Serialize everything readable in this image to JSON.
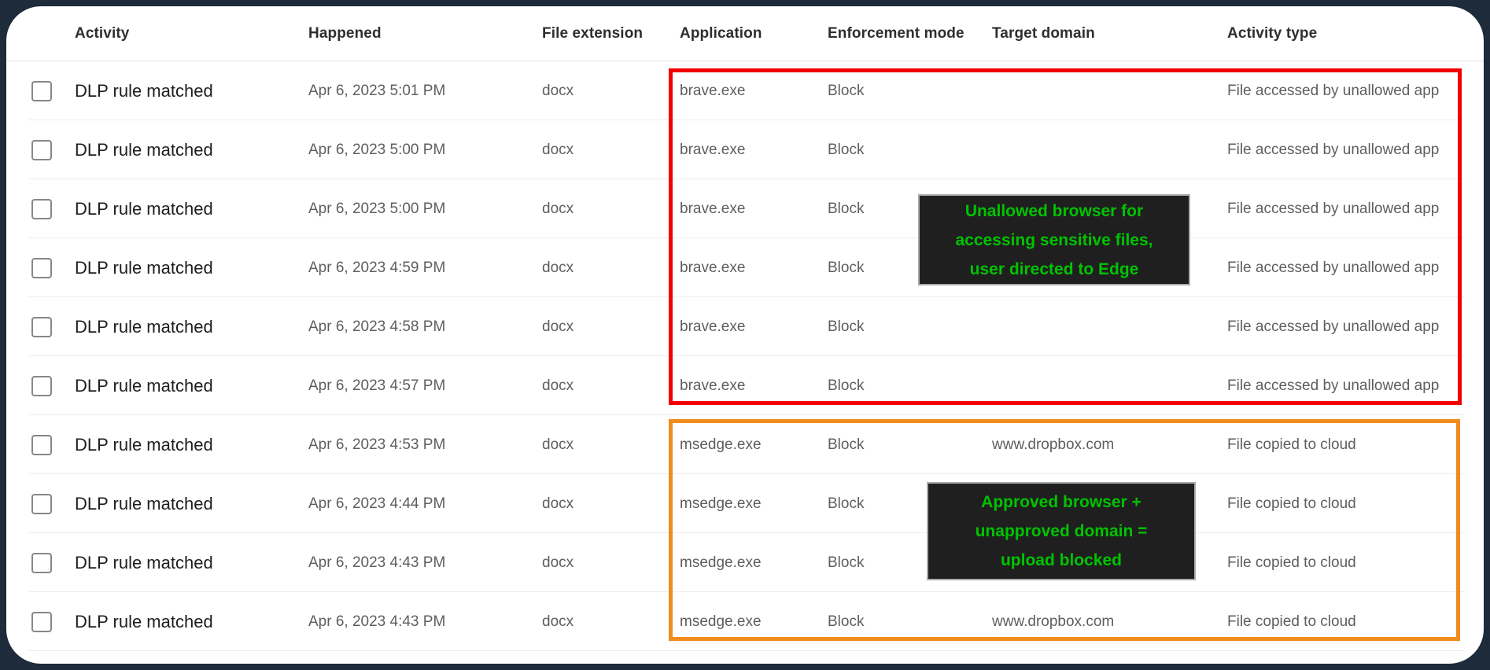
{
  "page": {
    "background_color": "#1d2b3a",
    "card_color": "#ffffff"
  },
  "table": {
    "columns": [
      "Activity",
      "Happened",
      "File extension",
      "Application",
      "Enforcement mode",
      "Target domain",
      "Activity type"
    ],
    "rows": [
      {
        "activity": "DLP rule matched",
        "happened": "Apr 6, 2023 5:01 PM",
        "file_extension": "docx",
        "application": "brave.exe",
        "enforcement_mode": "Block",
        "target_domain": "",
        "activity_type": "File accessed by unallowed app"
      },
      {
        "activity": "DLP rule matched",
        "happened": "Apr 6, 2023 5:00 PM",
        "file_extension": "docx",
        "application": "brave.exe",
        "enforcement_mode": "Block",
        "target_domain": "",
        "activity_type": "File accessed by unallowed app"
      },
      {
        "activity": "DLP rule matched",
        "happened": "Apr 6, 2023 5:00 PM",
        "file_extension": "docx",
        "application": "brave.exe",
        "enforcement_mode": "Block",
        "target_domain": "",
        "activity_type": "File accessed by unallowed app"
      },
      {
        "activity": "DLP rule matched",
        "happened": "Apr 6, 2023 4:59 PM",
        "file_extension": "docx",
        "application": "brave.exe",
        "enforcement_mode": "Block",
        "target_domain": "",
        "activity_type": "File accessed by unallowed app"
      },
      {
        "activity": "DLP rule matched",
        "happened": "Apr 6, 2023 4:58 PM",
        "file_extension": "docx",
        "application": "brave.exe",
        "enforcement_mode": "Block",
        "target_domain": "",
        "activity_type": "File accessed by unallowed app"
      },
      {
        "activity": "DLP rule matched",
        "happened": "Apr 6, 2023 4:57 PM",
        "file_extension": "docx",
        "application": "brave.exe",
        "enforcement_mode": "Block",
        "target_domain": "",
        "activity_type": "File accessed by unallowed app"
      },
      {
        "activity": "DLP rule matched",
        "happened": "Apr 6, 2023 4:53 PM",
        "file_extension": "docx",
        "application": "msedge.exe",
        "enforcement_mode": "Block",
        "target_domain": "www.dropbox.com",
        "activity_type": "File copied to cloud"
      },
      {
        "activity": "DLP rule matched",
        "happened": "Apr 6, 2023 4:44 PM",
        "file_extension": "docx",
        "application": "msedge.exe",
        "enforcement_mode": "Block",
        "target_domain": "",
        "activity_type": "File copied to cloud"
      },
      {
        "activity": "DLP rule matched",
        "happened": "Apr 6, 2023 4:43 PM",
        "file_extension": "docx",
        "application": "msedge.exe",
        "enforcement_mode": "Block",
        "target_domain": "",
        "activity_type": "File copied to cloud"
      },
      {
        "activity": "DLP rule matched",
        "happened": "Apr 6, 2023 4:43 PM",
        "file_extension": "docx",
        "application": "msedge.exe",
        "enforcement_mode": "Block",
        "target_domain": "www.dropbox.com",
        "activity_type": "File copied to cloud"
      }
    ]
  },
  "annotations": {
    "red_highlight_color": "#f20000",
    "orange_highlight_color": "#ef8d1c",
    "note_background": "#1f1f1f",
    "note_text_color": "#00c300",
    "note1": {
      "lines": [
        "Unallowed browser for",
        "accessing sensitive files,",
        "user directed to Edge"
      ]
    },
    "note2": {
      "lines": [
        "Approved browser +",
        "unapproved domain =",
        "upload blocked"
      ]
    }
  }
}
